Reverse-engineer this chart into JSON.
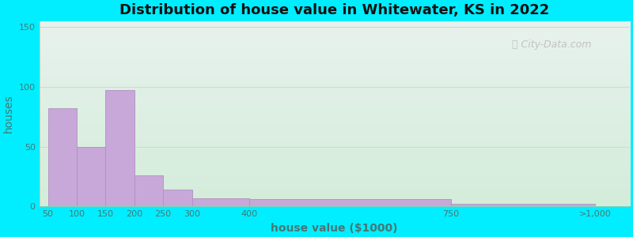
{
  "title": "Distribution of house value in Whitewater, KS in 2022",
  "xlabel": "house value ($1000)",
  "ylabel": "houses",
  "bar_left_edges": [
    50,
    100,
    150,
    200,
    250,
    300,
    400,
    750
  ],
  "bar_widths": [
    50,
    50,
    50,
    50,
    50,
    100,
    350,
    250
  ],
  "bar_heights": [
    82,
    50,
    97,
    26,
    14,
    7,
    6,
    2
  ],
  "bar_color": "#c8a8d8",
  "bar_edgecolor": "#b090c0",
  "ylim": [
    0,
    155
  ],
  "yticks": [
    0,
    50,
    100,
    150
  ],
  "xtick_positions": [
    50,
    100,
    150,
    200,
    250,
    300,
    400,
    750,
    1000
  ],
  "xtick_labels": [
    "50",
    "100",
    "150",
    "200",
    "250",
    "300",
    "400",
    "750",
    ">1,000"
  ],
  "xlim": [
    35,
    1060
  ],
  "background_outer": "#00eeff",
  "bg_color_top": "#e8f2ee",
  "bg_color_bottom": "#d4ecda",
  "grid_color": "#ccddcc",
  "watermark_text": "City-Data.com",
  "title_fontsize": 13,
  "axis_label_fontsize": 10,
  "tick_fontsize": 8,
  "tick_color": "#447777",
  "xlabel_color": "#447777",
  "ylabel_color": "#447777",
  "title_color": "#111111"
}
